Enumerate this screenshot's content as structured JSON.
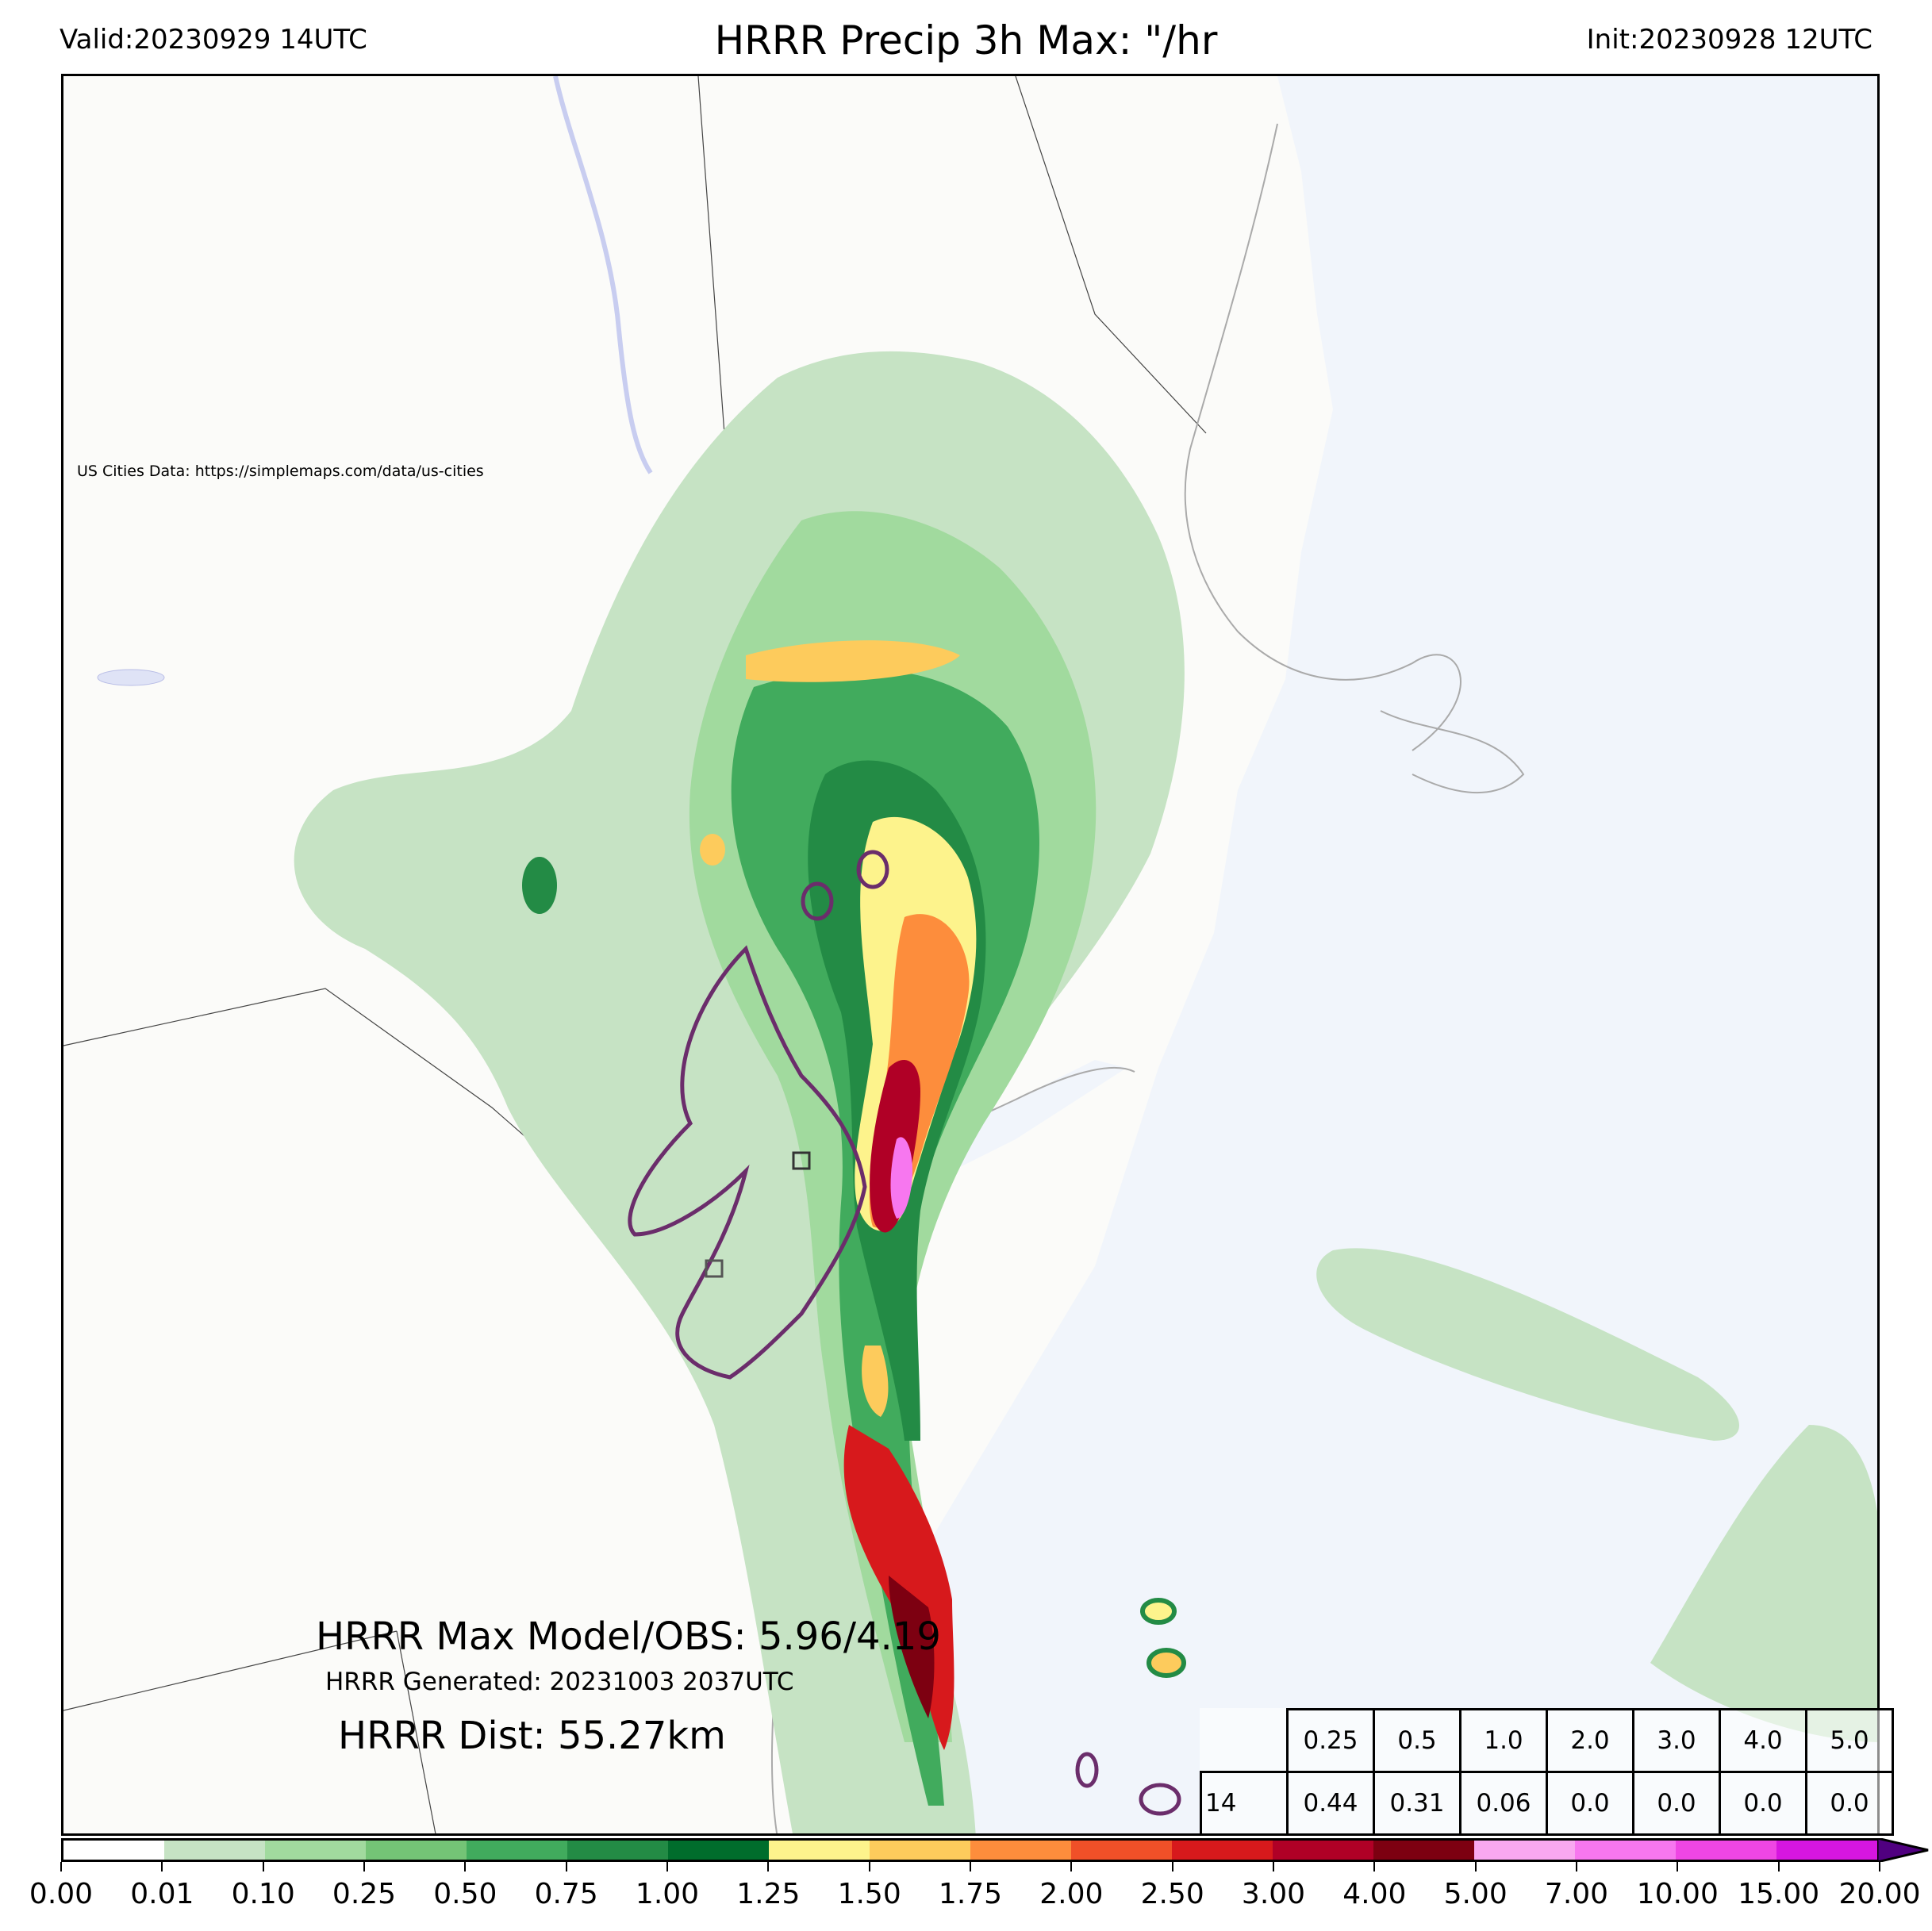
{
  "header": {
    "valid": "Valid:20230929 14UTC",
    "title": "HRRR Precip 3h Max: \"/hr",
    "init": "Init:20230928 12UTC"
  },
  "map": {
    "credit": "US Cities Data: https://simplemaps.com/data/us-cities",
    "land_color": "#fbfbf9",
    "water_color": "#f1f5fb"
  },
  "stats": {
    "max_model_obs": "HRRR Max Model/OBS: 5.96/4.19",
    "generated": "HRRR Generated: 20231003 2037UTC",
    "dist": "HRRR Dist: 55.27km"
  },
  "table": {
    "thresholds": [
      "0.25",
      "0.5",
      "1.0",
      "2.0",
      "3.0",
      "4.0",
      "5.0"
    ],
    "row_label": "14",
    "values": [
      "0.44",
      "0.31",
      "0.06",
      "0.0",
      "0.0",
      "0.0",
      "0.0"
    ]
  },
  "colorbar": {
    "ticks": [
      "0.00",
      "0.01",
      "0.10",
      "0.25",
      "0.50",
      "0.75",
      "1.00",
      "1.25",
      "1.50",
      "1.75",
      "2.00",
      "2.50",
      "3.00",
      "4.00",
      "5.00",
      "7.00",
      "10.00",
      "15.00",
      "20.00"
    ],
    "colors": [
      "#ffffff",
      "#c6e3c4",
      "#a1da9e",
      "#74c476",
      "#41ab5d",
      "#238b45",
      "#006d2c",
      "#fdf38c",
      "#fdcb5c",
      "#fd8d3c",
      "#f05028",
      "#d7191c",
      "#b00026",
      "#7d0011",
      "#f9a8f0",
      "#f777ef",
      "#ef46e4",
      "#d616e0",
      "#9b00c8"
    ],
    "extend": "max"
  }
}
